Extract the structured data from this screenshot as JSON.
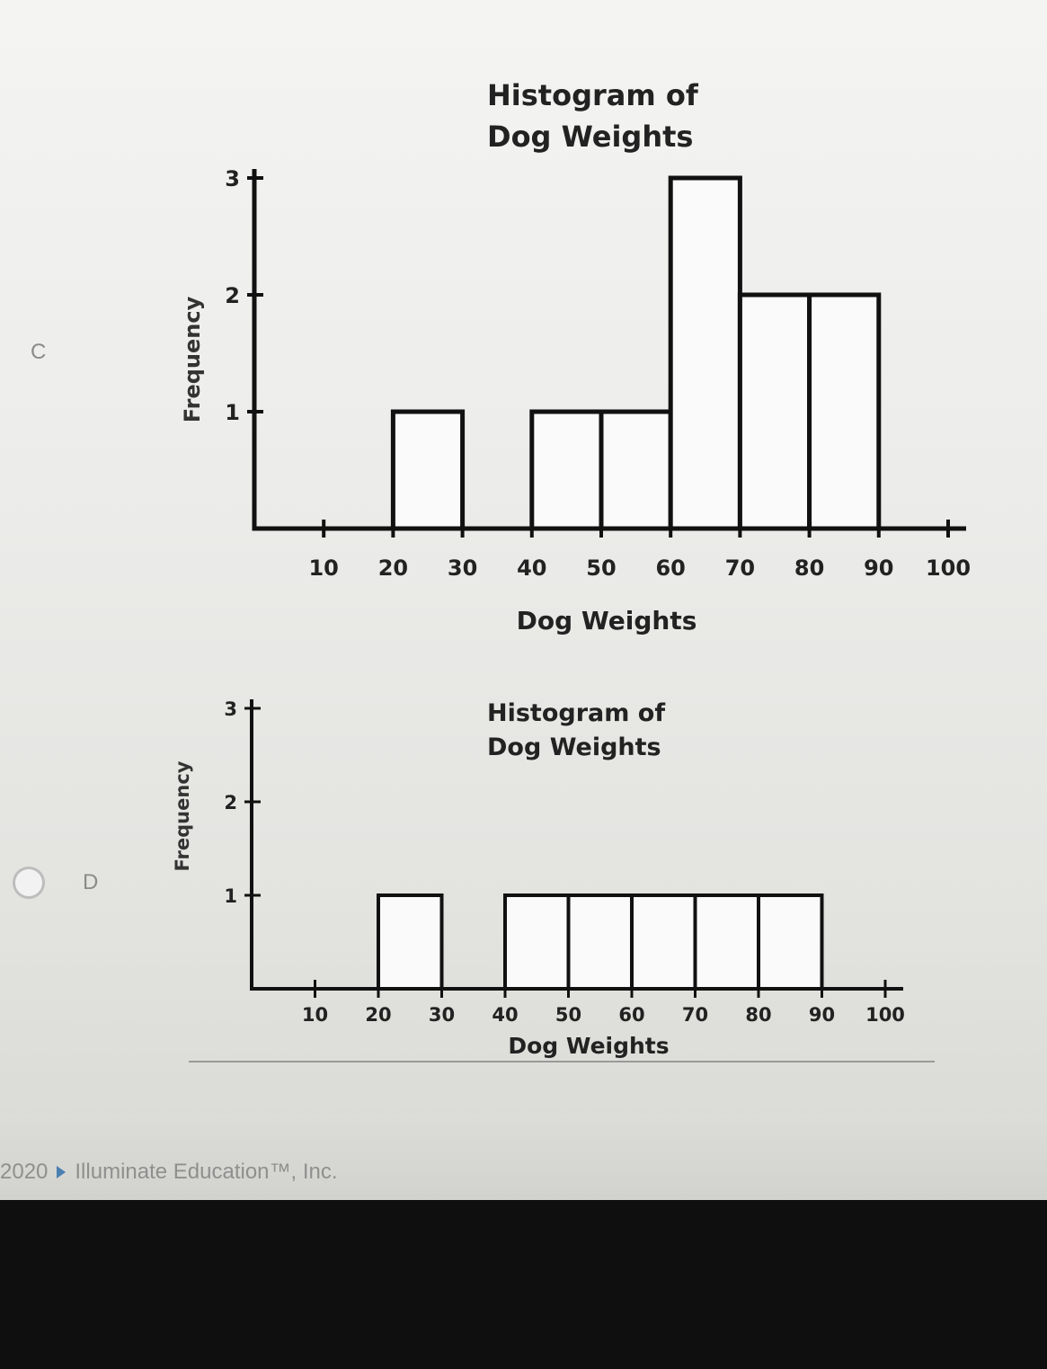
{
  "options": [
    {
      "letter": "C"
    },
    {
      "letter": "D"
    }
  ],
  "chart_data": [
    {
      "type": "bar",
      "title_lines": [
        "Histogram of",
        "Dog Weights"
      ],
      "xlabel": "Dog Weights",
      "ylabel": "Frequency",
      "x_ticks": [
        10,
        20,
        30,
        40,
        50,
        60,
        70,
        80,
        90,
        100
      ],
      "y_ticks": [
        1,
        2,
        3
      ],
      "ylim": [
        0,
        3
      ],
      "xlim": [
        0,
        100
      ],
      "bins": [
        {
          "start": 20,
          "end": 30,
          "value": 1
        },
        {
          "start": 40,
          "end": 50,
          "value": 1
        },
        {
          "start": 50,
          "end": 60,
          "value": 1
        },
        {
          "start": 60,
          "end": 70,
          "value": 3
        },
        {
          "start": 70,
          "end": 80,
          "value": 2
        },
        {
          "start": 80,
          "end": 90,
          "value": 2
        }
      ]
    },
    {
      "type": "bar",
      "title_lines": [
        "Histogram of",
        "Dog Weights"
      ],
      "xlabel": "Dog Weights",
      "ylabel": "Frequency",
      "x_ticks": [
        10,
        20,
        30,
        40,
        50,
        60,
        70,
        80,
        90,
        100
      ],
      "y_ticks": [
        1,
        2,
        3
      ],
      "ylim": [
        0,
        3
      ],
      "xlim": [
        0,
        100
      ],
      "bins": [
        {
          "start": 20,
          "end": 30,
          "value": 1
        },
        {
          "start": 40,
          "end": 50,
          "value": 1
        },
        {
          "start": 50,
          "end": 60,
          "value": 1
        },
        {
          "start": 60,
          "end": 70,
          "value": 1
        },
        {
          "start": 70,
          "end": 80,
          "value": 1
        },
        {
          "start": 80,
          "end": 90,
          "value": 1
        }
      ]
    }
  ],
  "footer": {
    "year": "2020",
    "company": "Illuminate Education™, Inc."
  }
}
